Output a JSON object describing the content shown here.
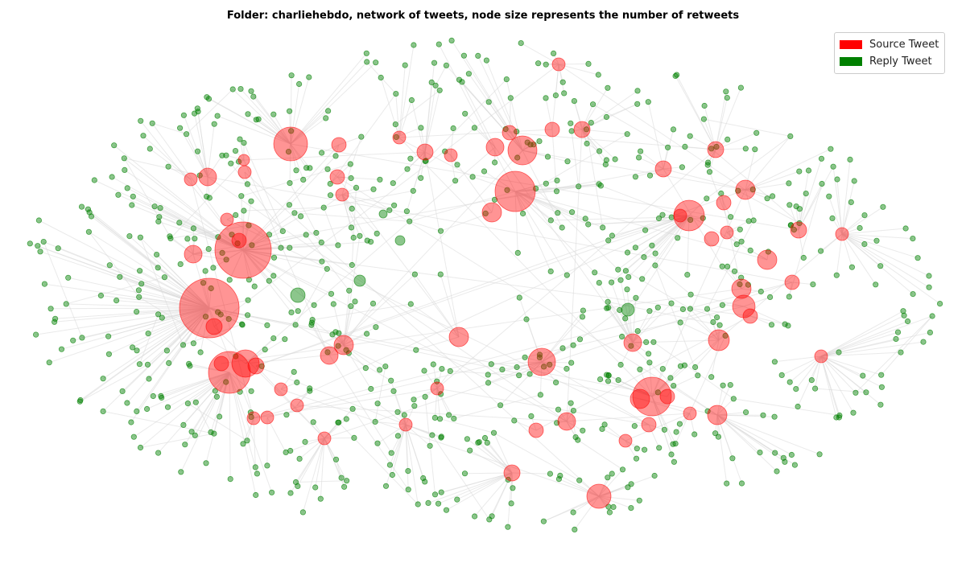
{
  "title": "Folder: charliehebdo, network of tweets, node size represents the number of retweets",
  "legend": [
    {
      "label": "Source Tweet",
      "color": "#ff0000"
    },
    {
      "label": "Reply Tweet",
      "color": "#008000"
    }
  ],
  "colors": {
    "source_node": "#ff0000",
    "reply_node": "#008000",
    "edge": "#d9d9d9"
  }
}
